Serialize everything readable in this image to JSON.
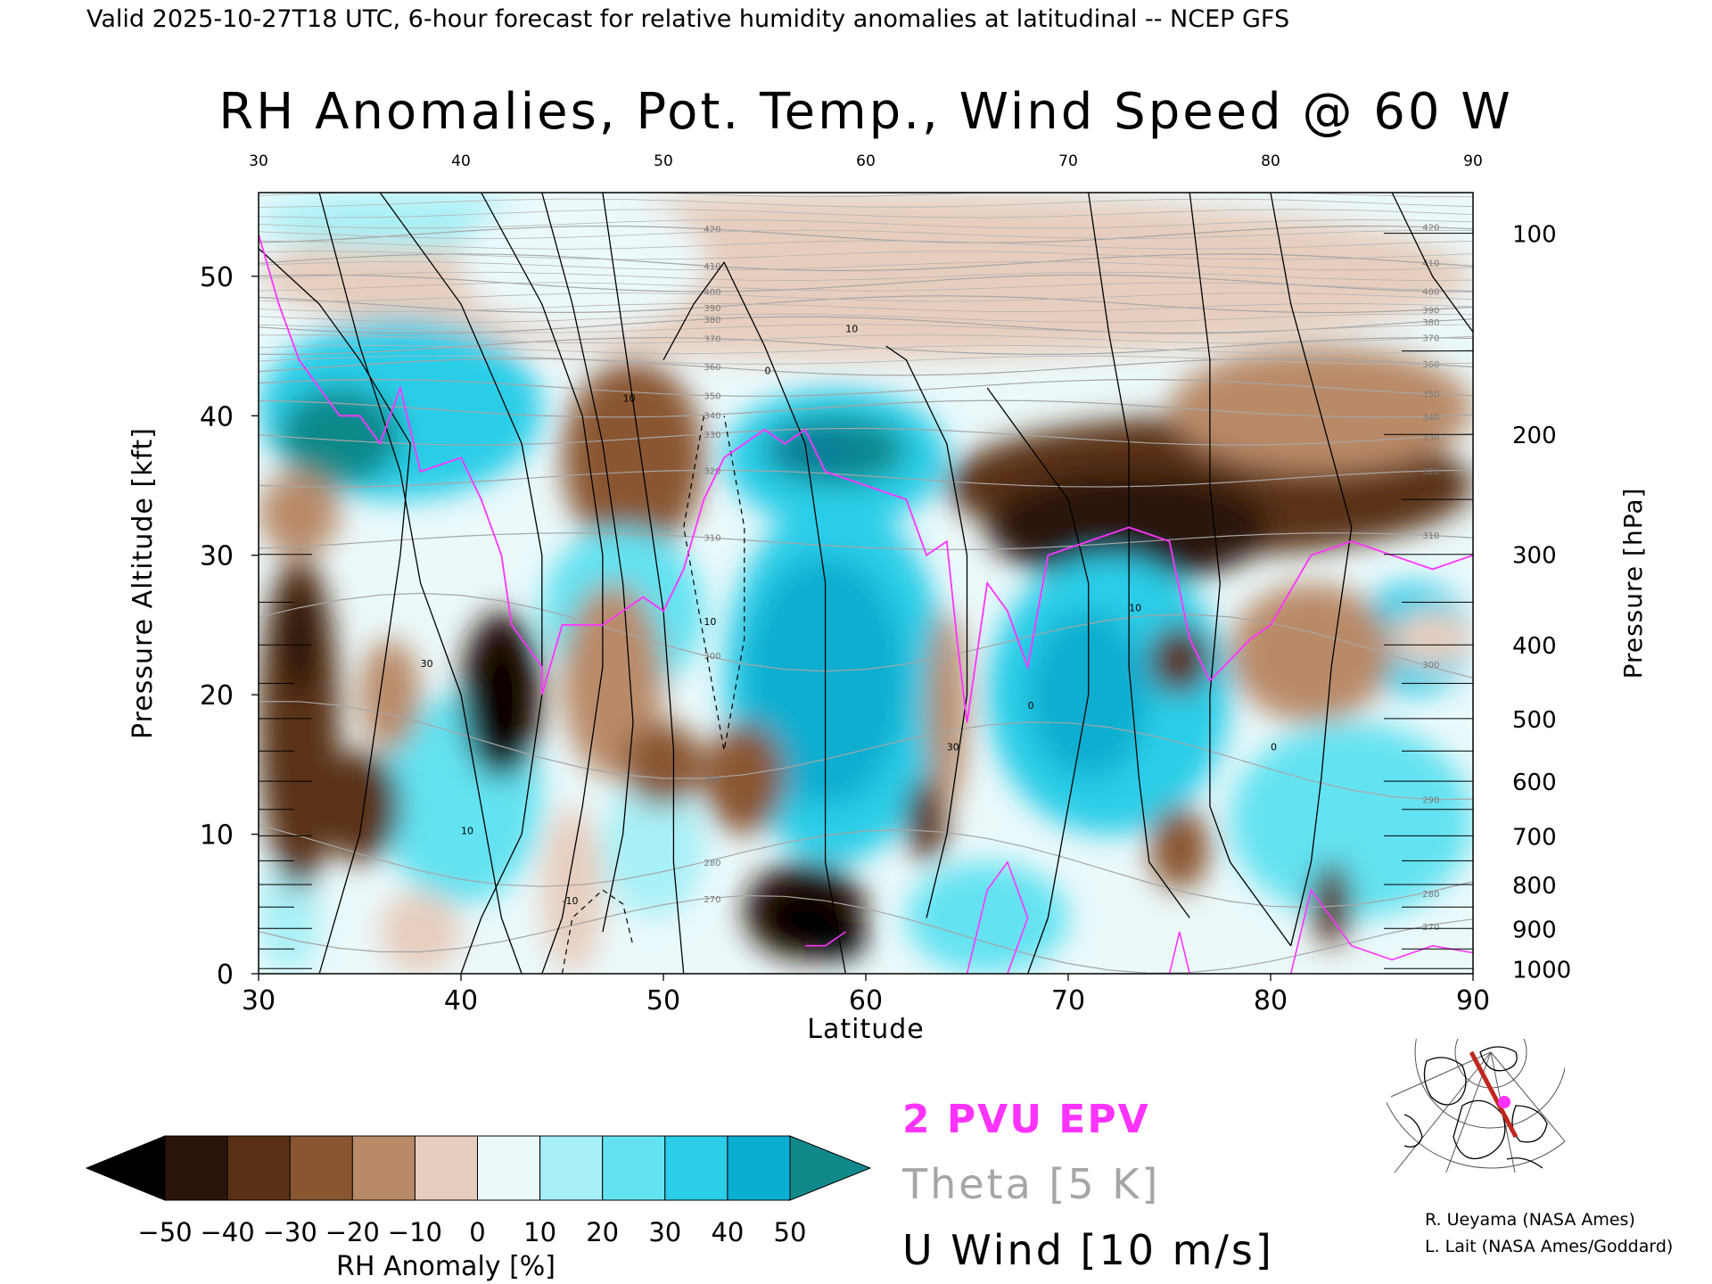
{
  "header": {
    "valid_line": "Valid 2025-10-27T18 UTC, 6-hour forecast for relative humidity anomalies at latitudinal -- NCEP GFS"
  },
  "chart_data": {
    "type": "heatmap",
    "title": "RH Anomalies, Pot. Temp., Wind Speed @ 60 W",
    "xlabel": "Latitude",
    "ylabel_left": "Pressure Altitude [kft]",
    "ylabel_right": "Pressure [hPa]",
    "x_range": [
      30,
      90
    ],
    "y_range": [
      0,
      56
    ],
    "x_ticks": [
      "30",
      "40",
      "50",
      "60",
      "70",
      "80",
      "90"
    ],
    "x_ticks_top": [
      "30",
      "40",
      "50",
      "60",
      "70",
      "80",
      "90"
    ],
    "y_ticks_left": [
      "0",
      "10",
      "20",
      "30",
      "40",
      "50"
    ],
    "y_ticks_right": [
      "100",
      "200",
      "300",
      "400",
      "500",
      "600",
      "700",
      "800",
      "900",
      "1000"
    ],
    "colorbar": {
      "label": "RH Anomaly [%]",
      "ticks": [
        "−50",
        "−40",
        "−30",
        "−20",
        "−10",
        "0",
        "10",
        "20",
        "30",
        "40",
        "50"
      ],
      "colors": [
        "#000000",
        "#2b150a",
        "#5a3114",
        "#8a5632",
        "#b98a68",
        "#e7cdbd",
        "#ebf9fb",
        "#a8f0f7",
        "#63e2f1",
        "#2ccde8",
        "#0aaed0",
        "#0c7f9a",
        "#11898a"
      ]
    },
    "theta_contour_labels": [
      "420",
      "410",
      "400",
      "390",
      "380",
      "370",
      "360",
      "350",
      "340",
      "330",
      "320",
      "310",
      "300",
      "290",
      "280",
      "270"
    ],
    "wind_contour_labels": [
      "0",
      "10",
      "30",
      "-10"
    ],
    "legend": [
      {
        "text": "2 PVU EPV",
        "color": "#ff33ff"
      },
      {
        "text": "Theta [5 K]",
        "color": "#a6a6a6"
      },
      {
        "text": "U Wind [10 m/s]",
        "color": "#000000"
      }
    ]
  },
  "credits": {
    "line1": "R. Ueyama (NASA Ames)",
    "line2": "L. Lait (NASA Ames/Goddard)"
  },
  "colors": {
    "epv": "#ff33ff",
    "theta": "#a6a6a6",
    "wind": "#000000",
    "map_track": "#c0281e"
  }
}
